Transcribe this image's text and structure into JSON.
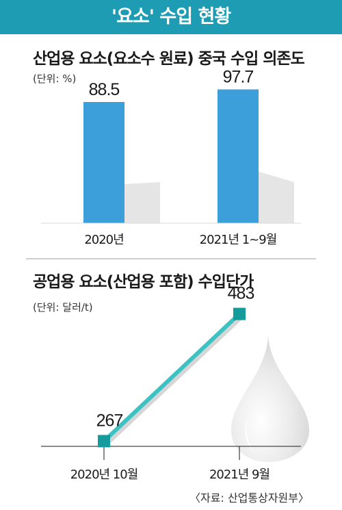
{
  "header": {
    "title": "'요소' 수입 현황"
  },
  "chart_data": [
    {
      "type": "bar",
      "title": "산업용 요소(요소수 원료) 중국 수입 의존도",
      "unit_label": "(단위: %)",
      "categories": [
        "2020년",
        "2021년 1~9월"
      ],
      "values": [
        88.5,
        97.7
      ],
      "value_labels": [
        "88.5",
        "97.7"
      ],
      "ylim": [
        0,
        100
      ],
      "bar_color": "#3d9fd9",
      "shadow_color": "#e5e5e5",
      "grid": false,
      "legend": "none"
    },
    {
      "type": "line",
      "title": "공업용 요소(산업용 포함) 수입단가",
      "unit_label": "(단위: 달러/t)",
      "categories": [
        "2020년 10월",
        "2021년 9월"
      ],
      "values": [
        267,
        483
      ],
      "value_labels": [
        "267",
        "483"
      ],
      "ylim": [
        200,
        500
      ],
      "line_color": "#3cc2c2",
      "marker_color": "#159b9b",
      "grid": false,
      "legend": "none"
    }
  ],
  "footer": {
    "source": "〈자료: 산업통상자원부〉"
  },
  "colors": {
    "banner": "#1e9cb3",
    "divider": "#bdbdbd"
  }
}
